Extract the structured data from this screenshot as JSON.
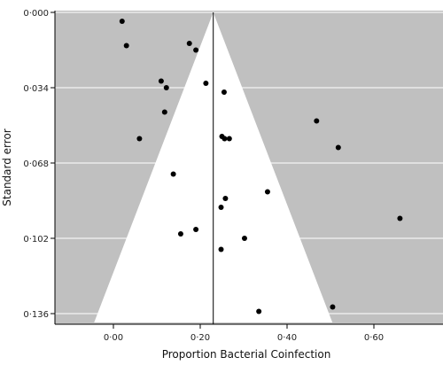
{
  "chart_data": {
    "type": "scatter",
    "subtype": "funnel-plot",
    "title": "",
    "xlabel": "Proportion Bacterial Coinfection",
    "ylabel": "Standard error",
    "xlim": [
      -0.15,
      0.76
    ],
    "ylim": [
      0.136,
      0.0
    ],
    "y_inverted": true,
    "xticks": [
      0.0,
      0.2,
      0.4,
      0.6
    ],
    "xtick_labels": [
      "0·00",
      "0·20",
      "0·40",
      "0·60"
    ],
    "yticks": [
      0.0,
      0.034,
      0.068,
      0.102,
      0.136
    ],
    "ytick_labels": [
      "0·000",
      "0·034",
      "0·068",
      "0·102",
      "0·136"
    ],
    "grid": true,
    "pooled_estimate": 0.23,
    "funnel_bottom_se": 0.14,
    "colors": {
      "background": "#c0c0c0",
      "funnel": "#ffffff",
      "grid": "#ffffff",
      "points": "#000000",
      "axis": "#000000"
    },
    "points": [
      {
        "x": 0.02,
        "y": 0.004
      },
      {
        "x": 0.03,
        "y": 0.015
      },
      {
        "x": 0.175,
        "y": 0.014
      },
      {
        "x": 0.19,
        "y": 0.017
      },
      {
        "x": 0.11,
        "y": 0.031
      },
      {
        "x": 0.122,
        "y": 0.034
      },
      {
        "x": 0.213,
        "y": 0.032
      },
      {
        "x": 0.255,
        "y": 0.036
      },
      {
        "x": 0.118,
        "y": 0.045
      },
      {
        "x": 0.06,
        "y": 0.057
      },
      {
        "x": 0.25,
        "y": 0.056
      },
      {
        "x": 0.256,
        "y": 0.057
      },
      {
        "x": 0.267,
        "y": 0.057
      },
      {
        "x": 0.468,
        "y": 0.049
      },
      {
        "x": 0.518,
        "y": 0.061
      },
      {
        "x": 0.138,
        "y": 0.073
      },
      {
        "x": 0.355,
        "y": 0.081
      },
      {
        "x": 0.258,
        "y": 0.084
      },
      {
        "x": 0.248,
        "y": 0.088
      },
      {
        "x": 0.66,
        "y": 0.093
      },
      {
        "x": 0.19,
        "y": 0.098
      },
      {
        "x": 0.155,
        "y": 0.1
      },
      {
        "x": 0.302,
        "y": 0.102
      },
      {
        "x": 0.248,
        "y": 0.107
      },
      {
        "x": 0.505,
        "y": 0.133
      },
      {
        "x": 0.335,
        "y": 0.135
      }
    ]
  }
}
